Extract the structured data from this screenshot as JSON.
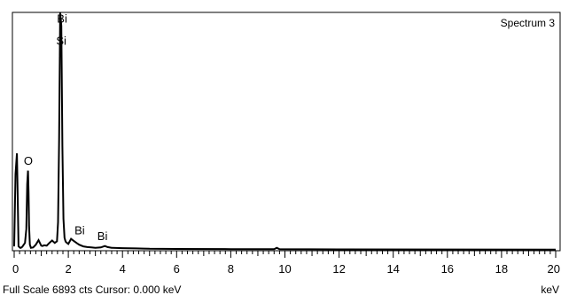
{
  "chart_data": {
    "type": "line",
    "title": "Spectrum 3",
    "xlabel": "keV",
    "ylabel": "",
    "xlim": [
      0,
      20
    ],
    "ylim": [
      0,
      6893
    ],
    "grid": false,
    "x_ticks": [
      0,
      2,
      4,
      6,
      8,
      10,
      12,
      14,
      16,
      18,
      20
    ],
    "x_tick_labels": [
      "0",
      "2",
      "4",
      "6",
      "8",
      "10",
      "12",
      "14",
      "16",
      "18",
      "20"
    ],
    "series": [
      {
        "x": [
          0.0,
          0.05,
          0.1,
          0.13,
          0.16,
          0.19,
          0.22,
          0.25,
          0.3,
          0.4,
          0.45,
          0.48,
          0.51,
          0.53,
          0.55,
          0.58,
          0.62,
          0.7,
          0.8,
          0.9,
          1.0,
          1.05,
          1.1,
          1.2,
          1.3,
          1.4,
          1.5,
          1.58,
          1.62,
          1.66,
          1.7,
          1.74,
          1.78,
          1.82,
          1.86,
          1.9,
          1.95,
          2.0,
          2.1,
          2.2,
          2.3,
          2.4,
          2.55,
          2.7,
          2.85,
          3.0,
          3.2,
          3.35,
          3.45,
          3.6,
          4.0,
          4.5,
          4.8,
          5.0,
          6.0,
          8.0,
          9.6,
          9.7,
          9.8,
          12.0,
          16.0,
          20.0
        ],
        "y": [
          100,
          2200,
          2800,
          1500,
          100,
          80,
          60,
          60,
          90,
          200,
          600,
          1900,
          2300,
          1700,
          700,
          150,
          60,
          70,
          150,
          280,
          120,
          110,
          130,
          120,
          200,
          270,
          200,
          250,
          800,
          3200,
          6893,
          6500,
          3000,
          900,
          350,
          240,
          200,
          170,
          320,
          260,
          200,
          150,
          100,
          80,
          70,
          60,
          70,
          110,
          80,
          60,
          50,
          40,
          35,
          30,
          25,
          20,
          18,
          60,
          18,
          12,
          10,
          8
        ]
      }
    ],
    "annotations": [
      {
        "label": "Bi",
        "x": 1.77,
        "y": 6600
      },
      {
        "label": "Si",
        "x": 1.74,
        "y": 5950
      },
      {
        "label": "O",
        "x": 0.52,
        "y": 2470
      },
      {
        "label": "Bi",
        "x": 2.42,
        "y": 450
      },
      {
        "label": "Bi",
        "x": 3.26,
        "y": 280
      }
    ],
    "footer_left": "Full Scale 6893 cts  Cursor: 0.000 keV"
  }
}
